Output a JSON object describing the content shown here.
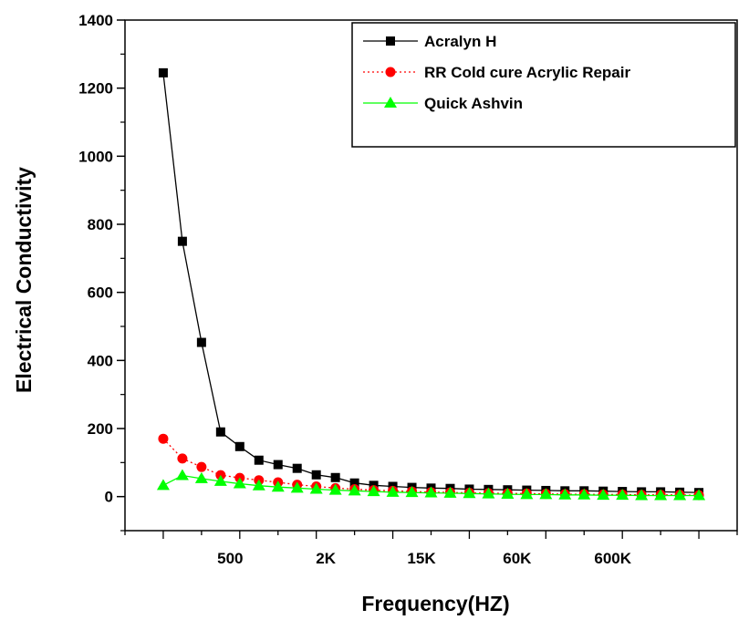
{
  "chart_data": {
    "type": "line",
    "title": "",
    "xlabel": "Frequency(HZ)",
    "ylabel": "Electrical Conductivity",
    "ylim": [
      -100,
      1400
    ],
    "yticks": [
      "0",
      "200",
      "400",
      "600",
      "800",
      "1000",
      "1200",
      "1400"
    ],
    "xtick_labels": [
      "500",
      "2K",
      "15K",
      "60K",
      "600K"
    ],
    "x_index_range": [
      -2,
      30
    ],
    "legend_position": "top-right",
    "grid": false,
    "series": [
      {
        "name": "Acralyn H",
        "color": "#000000",
        "marker": "square",
        "line_style": "solid",
        "values": [
          1245,
          750,
          453,
          190,
          147,
          107,
          94,
          83,
          64,
          56,
          40,
          33,
          30,
          27,
          25,
          24,
          22,
          21,
          20,
          19,
          18,
          17,
          17,
          16,
          15,
          14,
          14,
          13,
          12
        ]
      },
      {
        "name": "RR Cold cure Acrylic Repair",
        "color": "#ff0000",
        "marker": "circle",
        "line_style": "dotted",
        "values": [
          170,
          112,
          87,
          63,
          55,
          48,
          42,
          35,
          30,
          25,
          22,
          19,
          17,
          15,
          13,
          12,
          11,
          10,
          9,
          9,
          8,
          7,
          7,
          6,
          6,
          5,
          5,
          5,
          4
        ]
      },
      {
        "name": "Quick Ashvin",
        "color": "#00ff00",
        "marker": "triangle",
        "line_style": "solid",
        "values": [
          33,
          62,
          53,
          45,
          38,
          32,
          28,
          25,
          22,
          19,
          17,
          15,
          13,
          12,
          11,
          10,
          9,
          8,
          7,
          6,
          6,
          5,
          5,
          4,
          4,
          3,
          3,
          3,
          3
        ]
      }
    ]
  }
}
